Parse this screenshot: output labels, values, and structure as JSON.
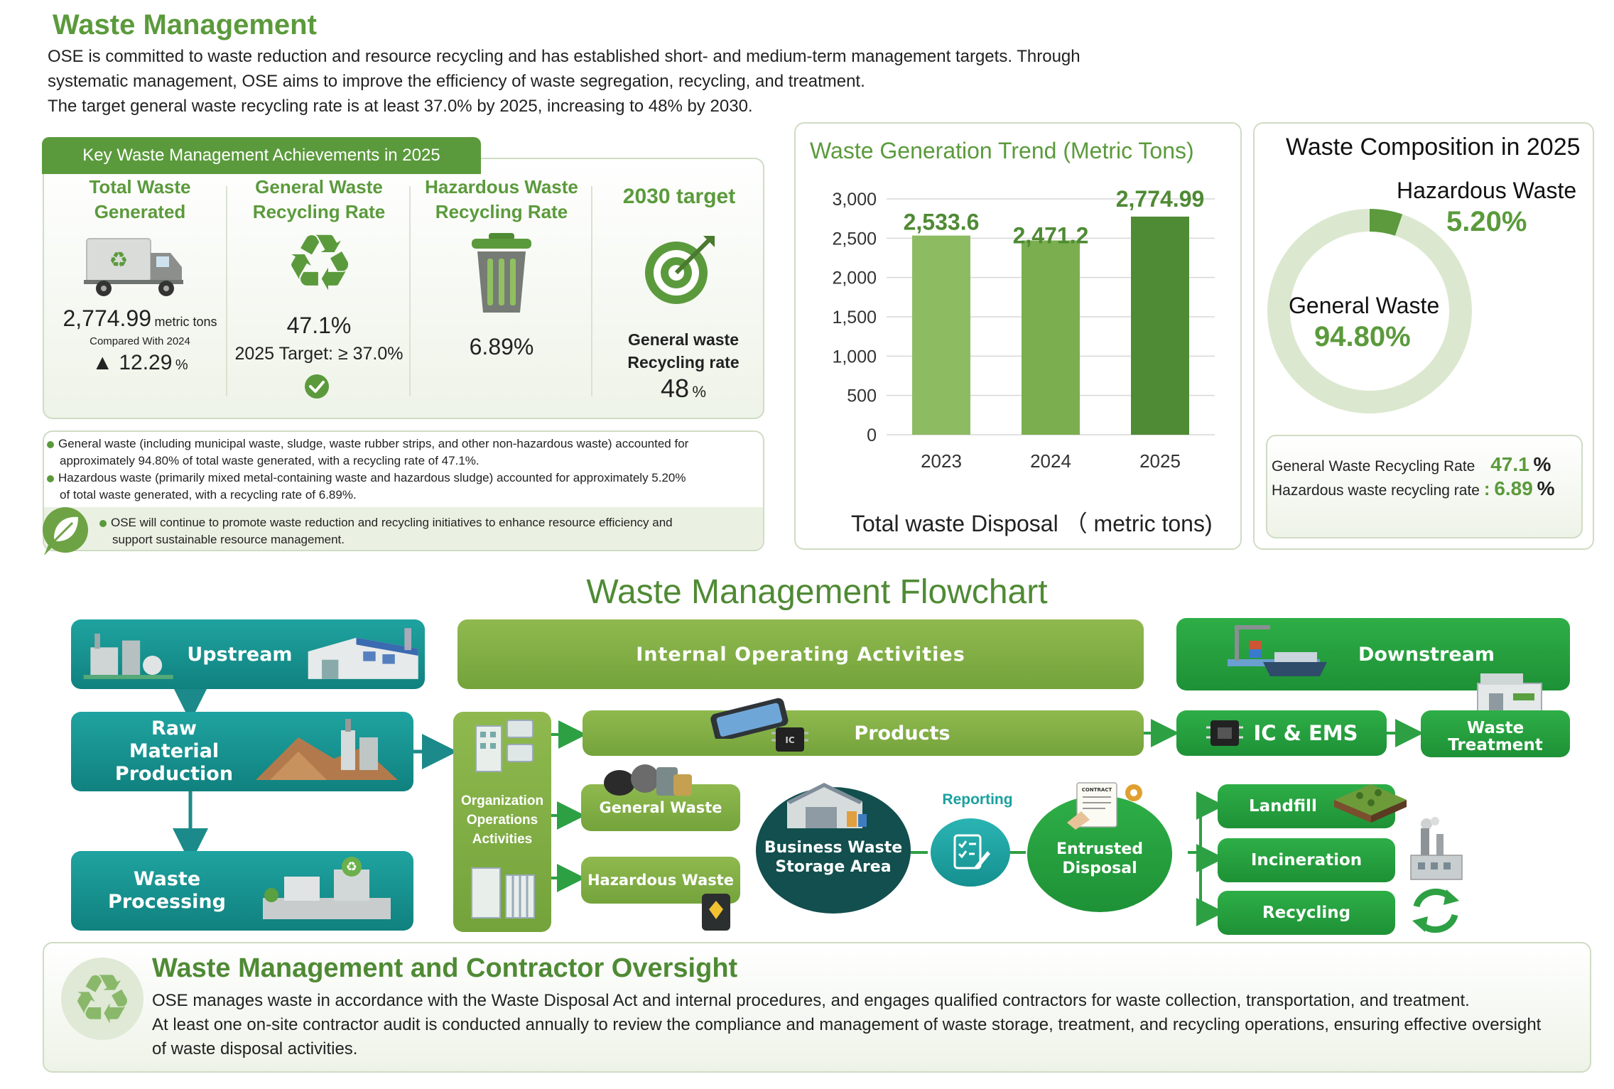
{
  "header": {
    "title": "Waste Management",
    "intro_line1": "OSE is committed to waste reduction and resource recycling and has established short- and medium-term management targets. Through",
    "intro_line2": "systematic management, OSE aims to improve the efficiency of waste segregation, recycling, and treatment.",
    "intro_line3": "The target general waste recycling rate is at least 37.0% by 2025, increasing to 48% by 2030."
  },
  "achievements": {
    "tab_label": "Key Waste Management Achievements in 2025",
    "col1": {
      "title_l1": "Total Waste",
      "title_l2": "Generated",
      "value": "2,774.99",
      "unit": "metric tons",
      "compared": "Compared With 2024",
      "change": "▲ 12.29",
      "change_unit": "%"
    },
    "col2": {
      "title_l1": "General Waste",
      "title_l2": "Recycling Rate",
      "value": "47.1%",
      "target": "2025 Target: ≥ 37.0%"
    },
    "col3": {
      "title_l1": "Hazardous Waste",
      "title_l2": "Recycling Rate",
      "value": "6.89%"
    },
    "col4": {
      "title": "2030 target",
      "label_l1": "General waste",
      "label_l2": "Recycling rate",
      "value": "48",
      "unit": "%"
    }
  },
  "notes": {
    "b1_l1": "General waste (including municipal waste, sludge, waste rubber strips, and other non-hazardous waste) accounted for",
    "b1_l2": "approximately 94.80% of total waste generated, with a recycling rate of 47.1%.",
    "b2_l1": "Hazardous waste (primarily mixed metal-containing waste and hazardous sludge) accounted for approximately 5.20%",
    "b2_l2": "of total waste generated, with a recycling rate of 6.89%.",
    "b3_l1": "OSE will continue to promote waste reduction and recycling initiatives to enhance resource efficiency and",
    "b3_l2": "support sustainable resource management."
  },
  "chart_data": [
    {
      "type": "bar",
      "title": "Waste Generation Trend (Metric Tons)",
      "xlabel": "Total waste Disposal （ metric tons)",
      "ylabel": "",
      "categories": [
        "2023",
        "2024",
        "2025"
      ],
      "values": [
        2533.6,
        2471.2,
        2774.99
      ],
      "value_labels": [
        "2,533.6",
        "2,471.2",
        "2,774.99"
      ],
      "yticks": [
        "0",
        "500",
        "1,000",
        "1,500",
        "2,000",
        "2,500",
        "3,000"
      ],
      "ylim": [
        0,
        3000
      ],
      "grid": true,
      "colors": [
        "#8dbb62",
        "#7aae4f",
        "#4f8a34"
      ]
    },
    {
      "type": "pie",
      "title": "Waste Composition in 2025",
      "labels": [
        "General Waste",
        "Hazardous Waste"
      ],
      "values": [
        94.8,
        5.2
      ],
      "value_labels": [
        "94.80%",
        "5.20%"
      ],
      "colors": [
        "#dbe8cf",
        "#5c9a3d"
      ]
    }
  ],
  "composition_rates": {
    "general_label": "General Waste Recycling Rate",
    "general_value": "47.1",
    "general_unit": "%",
    "hazard_label": "Hazardous waste recycling rate",
    "hazard_sep": ":",
    "hazard_value": "6.89",
    "hazard_unit": "%"
  },
  "flowchart": {
    "title": "Waste Management Flowchart",
    "upstream": "Upstream",
    "internal": "Internal Operating Activities",
    "downstream": "Downstream",
    "raw_l1": "Raw Material",
    "raw_l2": "Production",
    "processing_l1": "Waste",
    "processing_l2": "Processing",
    "org_l1": "Organization",
    "org_l2": "Operations",
    "org_l3": "Activities",
    "products": "Products",
    "general_waste": "General Waste",
    "hazardous_waste": "Hazardous Waste",
    "storage_l1": "Business Waste",
    "storage_l2": "Storage Area",
    "reporting": "Reporting",
    "entrusted_l1": "Entrusted",
    "entrusted_l2": "Disposal",
    "contract_label": "CONTRACT",
    "ic_ems": "IC & EMS",
    "treatment_l1": "Waste",
    "treatment_l2": "Treatment",
    "landfill": "Landfill",
    "incineration": "Incineration",
    "recycling": "Recycling"
  },
  "oversight": {
    "title": "Waste Management and Contractor Oversight",
    "l1": "OSE manages waste in accordance with the Waste Disposal Act and internal procedures, and engages qualified contractors for waste collection, transportation, and treatment.",
    "l2": "At least one on-site contractor audit is conducted annually to review the compliance and management of waste storage, treatment, and recycling operations, ensuring effective oversight",
    "l3": "of waste disposal activities."
  },
  "icons": [
    "truck-icon",
    "recycle-icon",
    "trash-bin-icon",
    "target-icon",
    "check-icon",
    "leaf-icon",
    "factory-icon",
    "phone-icon",
    "chip-icon",
    "warehouse-icon",
    "report-icon",
    "contract-icon",
    "landfill-icon",
    "smokestack-icon",
    "refresh-icon",
    "ship-icon",
    "barrel-icon"
  ]
}
